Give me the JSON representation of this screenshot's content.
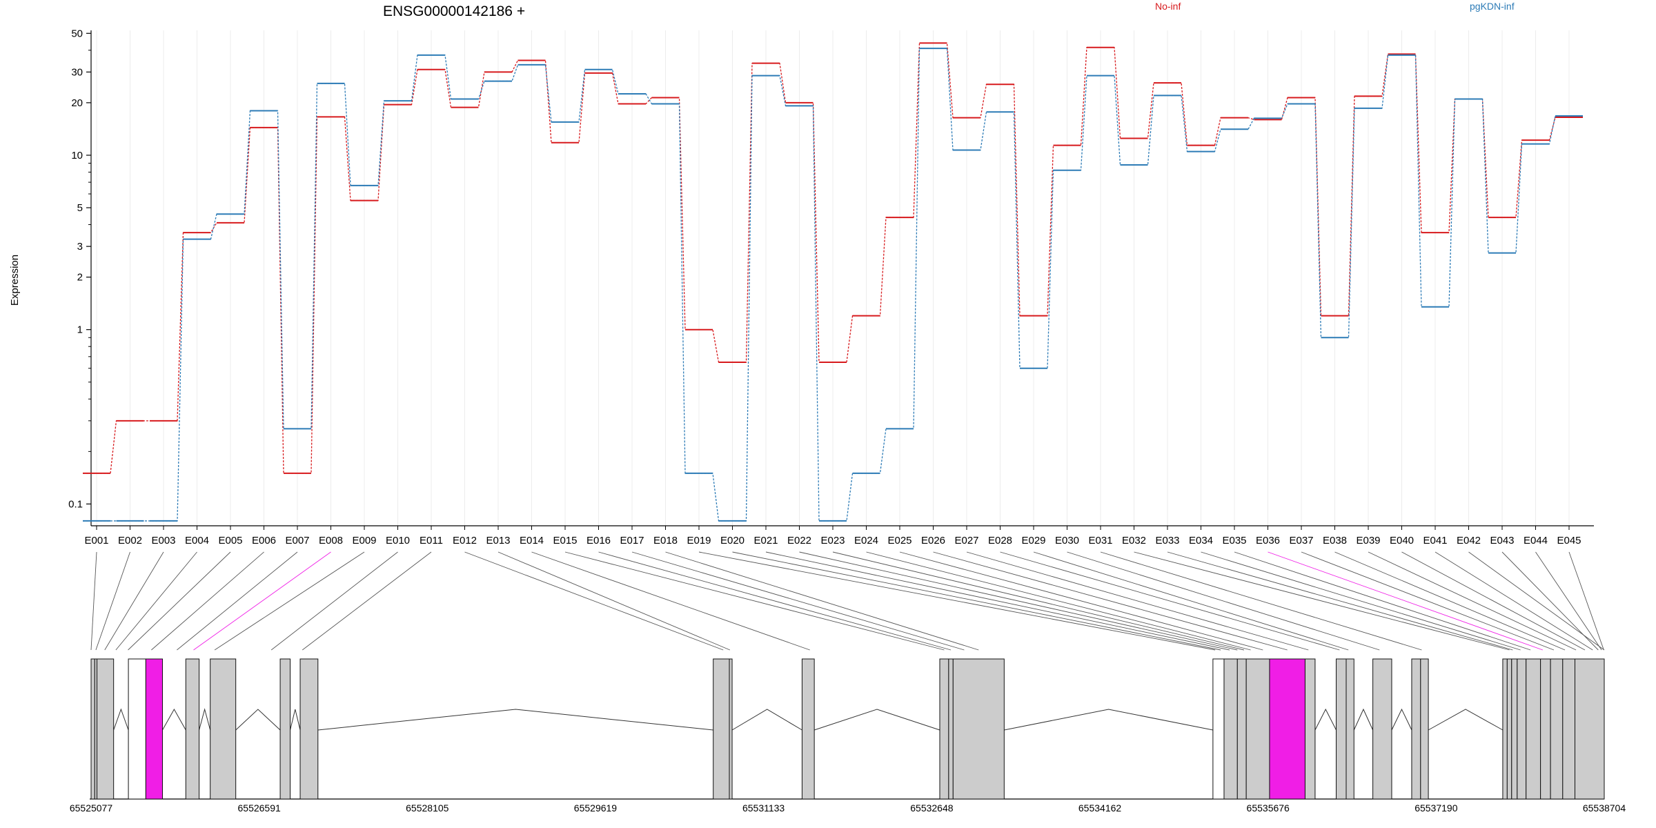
{
  "chart_data": {
    "type": "line",
    "title": "ENSG00000142186 +",
    "ylabel": "Expression",
    "y_scale": "log",
    "ylim": [
      0.075,
      52
    ],
    "yticks": [
      {
        "value": 50,
        "label": "50"
      },
      {
        "value": 30,
        "label": "30"
      },
      {
        "value": 20,
        "label": "20"
      },
      {
        "value": 10,
        "label": "10"
      },
      {
        "value": 5,
        "label": "5"
      },
      {
        "value": 3,
        "label": "3"
      },
      {
        "value": 2,
        "label": "2"
      },
      {
        "value": 1,
        "label": "1"
      },
      {
        "value": 0.1,
        "label": "0.1"
      }
    ],
    "categories": [
      "E001",
      "E002",
      "E003",
      "E004",
      "E005",
      "E006",
      "E007",
      "E008",
      "E009",
      "E010",
      "E011",
      "E012",
      "E013",
      "E014",
      "E015",
      "E016",
      "E017",
      "E018",
      "E019",
      "E020",
      "E021",
      "E022",
      "E023",
      "E024",
      "E025",
      "E026",
      "E027",
      "E028",
      "E029",
      "E030",
      "E031",
      "E032",
      "E033",
      "E034",
      "E035",
      "E036",
      "E037",
      "E038",
      "E039",
      "E040",
      "E041",
      "E042",
      "E043",
      "E044",
      "E045"
    ],
    "series": [
      {
        "name": "No-inf",
        "color": "#d7191c",
        "values": [
          0.15,
          0.3,
          0.3,
          3.6,
          4.1,
          14.4,
          0.15,
          16.6,
          5.5,
          19.5,
          31,
          18.8,
          30,
          35,
          11.8,
          29.6,
          19.7,
          21.4,
          1.0,
          0.65,
          33.7,
          20,
          0.65,
          1.2,
          4.4,
          44,
          16.4,
          25.5,
          1.2,
          11.4,
          41.5,
          12.5,
          26,
          11.4,
          16.4,
          16,
          21.4,
          1.2,
          21.8,
          38,
          3.6,
          21,
          4.4,
          12.2,
          16.5
        ]
      },
      {
        "name": "pgKDN-inf",
        "color": "#2c7bb6",
        "values": [
          0.08,
          0.08,
          0.08,
          3.3,
          4.6,
          18,
          0.27,
          25.8,
          6.7,
          20.5,
          37.5,
          21,
          26.6,
          33,
          15.5,
          31,
          22.5,
          19.7,
          0.15,
          0.08,
          28.6,
          19.2,
          0.08,
          0.15,
          0.27,
          41,
          10.7,
          17.7,
          0.6,
          8.2,
          28.6,
          8.8,
          22,
          10.5,
          14.1,
          16.3,
          19.7,
          0.9,
          18.6,
          37.5,
          1.35,
          21,
          2.75,
          11.6,
          16.8
        ]
      }
    ],
    "legend": [
      "No-inf",
      "pgKDN-inf"
    ],
    "legend_placement": "top-right",
    "gene_model": {
      "coordinate_labels": [
        "65525077",
        "65526591",
        "65528105",
        "65529619",
        "65531133",
        "65532648",
        "65534162",
        "65535676",
        "65537190",
        "65538704"
      ],
      "coordinate_positions": [
        65525077,
        65526591,
        65528105,
        65529619,
        65531133,
        65532648,
        65534162,
        65535676,
        65537190,
        65538704
      ],
      "region_start": 65525077,
      "region_end": 65538704,
      "highlight_color": "#f01ee6",
      "exon_color": "#cccccc",
      "exons": [
        {
          "start": 65525077,
          "end": 65525110,
          "fill": "#cccccc"
        },
        {
          "start": 65525110,
          "end": 65525130,
          "fill": "#cccccc"
        },
        {
          "start": 65525130,
          "end": 65525280,
          "fill": "#cccccc"
        },
        {
          "start": 65525413,
          "end": 65525570,
          "fill": "#ffffff"
        },
        {
          "start": 65525570,
          "end": 65525720,
          "fill": "#f01ee6"
        },
        {
          "start": 65525930,
          "end": 65526050,
          "fill": "#cccccc"
        },
        {
          "start": 65526150,
          "end": 65526380,
          "fill": "#cccccc"
        },
        {
          "start": 65526780,
          "end": 65526870,
          "fill": "#cccccc"
        },
        {
          "start": 65526960,
          "end": 65527120,
          "fill": "#cccccc"
        },
        {
          "start": 65530680,
          "end": 65530825,
          "fill": "#cccccc"
        },
        {
          "start": 65530825,
          "end": 65530850,
          "fill": "#cccccc"
        },
        {
          "start": 65531480,
          "end": 65531590,
          "fill": "#cccccc"
        },
        {
          "start": 65532720,
          "end": 65532800,
          "fill": "#cccccc"
        },
        {
          "start": 65532800,
          "end": 65532840,
          "fill": "#cccccc"
        },
        {
          "start": 65532840,
          "end": 65533300,
          "fill": "#cccccc"
        },
        {
          "start": 65535180,
          "end": 65535280,
          "fill": "#ffffff"
        },
        {
          "start": 65535280,
          "end": 65535400,
          "fill": "#cccccc"
        },
        {
          "start": 65535400,
          "end": 65535480,
          "fill": "#cccccc"
        },
        {
          "start": 65535480,
          "end": 65535690,
          "fill": "#cccccc"
        },
        {
          "start": 65535690,
          "end": 65536010,
          "fill": "#f01ee6"
        },
        {
          "start": 65536010,
          "end": 65536100,
          "fill": "#cccccc"
        },
        {
          "start": 65536290,
          "end": 65536380,
          "fill": "#cccccc"
        },
        {
          "start": 65536380,
          "end": 65536450,
          "fill": "#cccccc"
        },
        {
          "start": 65536620,
          "end": 65536790,
          "fill": "#cccccc"
        },
        {
          "start": 65536970,
          "end": 65537050,
          "fill": "#cccccc"
        },
        {
          "start": 65537050,
          "end": 65537120,
          "fill": "#cccccc"
        },
        {
          "start": 65537790,
          "end": 65537830,
          "fill": "#cccccc"
        },
        {
          "start": 65537830,
          "end": 65537870,
          "fill": "#cccccc"
        },
        {
          "start": 65537870,
          "end": 65537920,
          "fill": "#cccccc"
        },
        {
          "start": 65537920,
          "end": 65538000,
          "fill": "#cccccc"
        },
        {
          "start": 65538000,
          "end": 65538130,
          "fill": "#cccccc"
        },
        {
          "start": 65538130,
          "end": 65538220,
          "fill": "#cccccc"
        },
        {
          "start": 65538220,
          "end": 65538330,
          "fill": "#cccccc"
        },
        {
          "start": 65538330,
          "end": 65538440,
          "fill": "#cccccc"
        },
        {
          "start": 65538440,
          "end": 65538704,
          "fill": "#cccccc"
        }
      ],
      "exon_map": [
        65525077,
        65525120,
        65525200,
        65525300,
        65525410,
        65525620,
        65525850,
        65526000,
        65526190,
        65526700,
        65526980,
        65530770,
        65530830,
        65531550,
        65532760,
        65532820,
        65532940,
        65533070,
        65535200,
        65535250,
        65535330,
        65535400,
        65535460,
        65535520,
        65535630,
        65535850,
        65536040,
        65536320,
        65536400,
        65536680,
        65537060,
        65537850,
        65537880,
        65537950,
        65538040,
        65538150,
        65538250,
        65538350,
        65538450,
        65538530,
        65538600,
        65538704,
        65538650,
        65538680,
        65538700
      ],
      "highlighted_exons": [
        "E008",
        "E036"
      ]
    }
  }
}
